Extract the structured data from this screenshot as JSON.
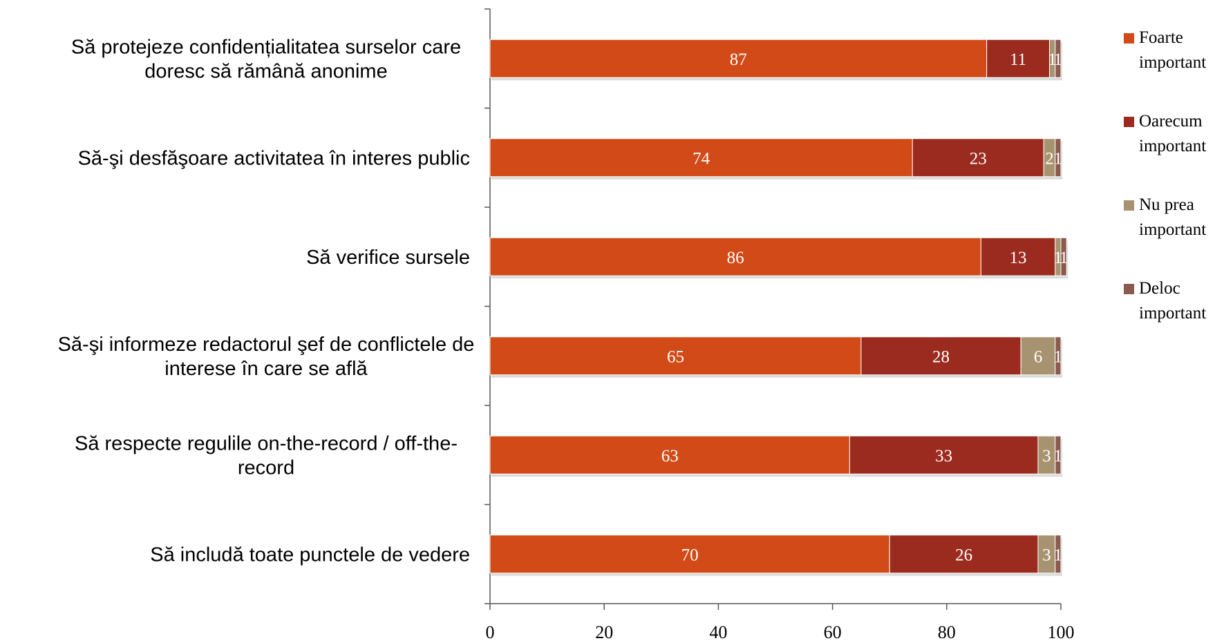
{
  "chart_data": {
    "type": "bar",
    "orientation": "horizontal",
    "stacked": true,
    "categories": [
      [
        "Să protejeze confidențialitatea surselor care",
        "doresc să rămână anonime"
      ],
      [
        "Să-şi desfăşoare activitatea în interes public"
      ],
      [
        "Să verifice sursele"
      ],
      [
        "Să-şi informeze redactorul şef de conflictele de",
        "interese în care se află"
      ],
      [
        "Să respecte regulile on-the-record / off-the-",
        "record"
      ],
      [
        "Să includă toate punctele de vedere"
      ]
    ],
    "series": [
      {
        "name": [
          "Foarte",
          "important"
        ],
        "color": "#d24a17",
        "values": [
          87,
          74,
          86,
          65,
          63,
          70
        ]
      },
      {
        "name": [
          "Oarecum",
          "important"
        ],
        "color": "#9b2b1e",
        "values": [
          11,
          23,
          13,
          28,
          33,
          26
        ]
      },
      {
        "name": [
          "Nu prea",
          "important"
        ],
        "color": "#a89370",
        "values": [
          1,
          2,
          1,
          6,
          3,
          3
        ]
      },
      {
        "name": [
          "Deloc",
          "important"
        ],
        "color": "#8a5a4f",
        "values": [
          1,
          1,
          1,
          1,
          1,
          1
        ]
      }
    ],
    "xlim": [
      0,
      100
    ],
    "xticks": [
      0,
      20,
      40,
      60,
      80,
      100
    ],
    "title": "",
    "xlabel": "",
    "ylabel": "",
    "grid": false,
    "legend_position": "right"
  }
}
